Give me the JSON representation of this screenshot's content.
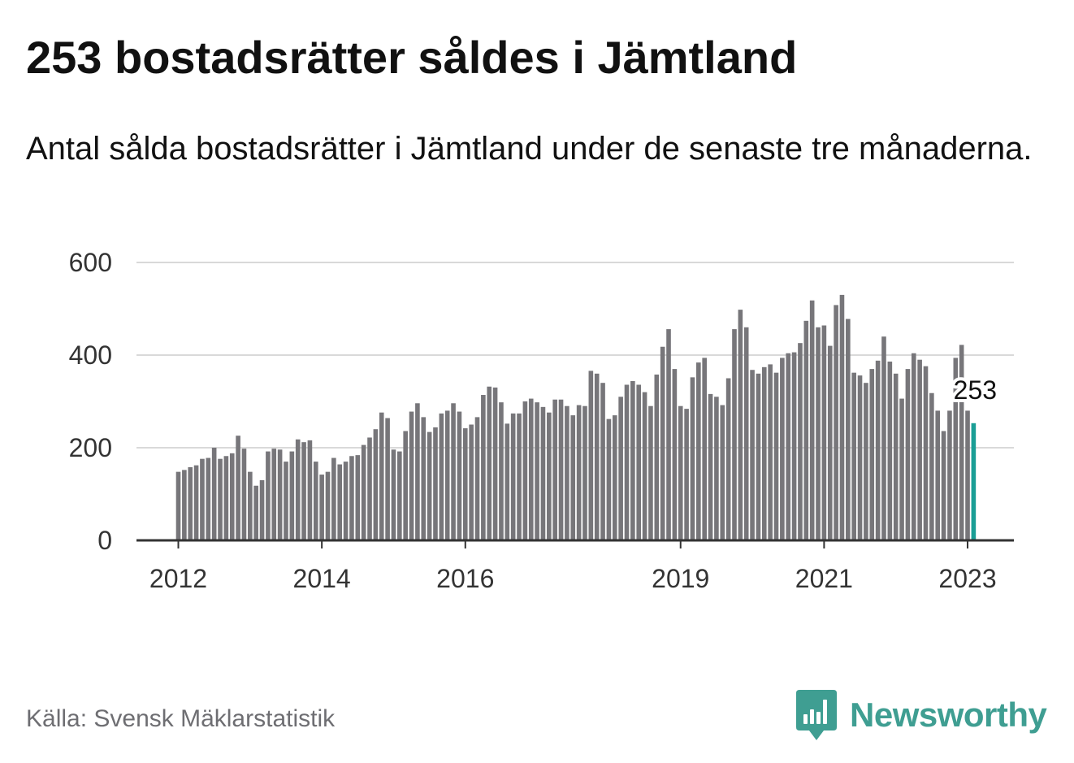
{
  "title": "253 bostadsrätter såldes i Jämtland",
  "subtitle": "Antal sålda bostadsrätter i Jämtland under de senaste tre månaderna.",
  "source": "Källa: Svensk Mäklarstatistik",
  "brand": {
    "name": "Newsworthy",
    "icon": "newsworthy-logo-icon",
    "color": "#3f9e92"
  },
  "colors": {
    "bar": "#77767a",
    "highlight": "#1a9e95",
    "grid": "#d9d9d9",
    "axis": "#333333"
  },
  "chart_data": {
    "type": "bar",
    "title": "253 bostadsrätter såldes i Jämtland",
    "subtitle": "Antal sålda bostadsrätter i Jämtland under de senaste tre månaderna.",
    "xlabel": "",
    "ylabel": "",
    "ylim": [
      0,
      600
    ],
    "yticks": [
      0,
      200,
      400,
      600
    ],
    "xticks": [
      "2012",
      "2014",
      "2016",
      "2019",
      "2021",
      "2023"
    ],
    "grid": true,
    "legend": "none",
    "x_start": "2012-01",
    "frequency": "monthly",
    "highlight_label": "253",
    "values": [
      148,
      152,
      158,
      162,
      176,
      178,
      200,
      176,
      182,
      188,
      226,
      198,
      148,
      118,
      130,
      192,
      198,
      196,
      170,
      192,
      218,
      212,
      216,
      170,
      142,
      148,
      178,
      164,
      170,
      182,
      184,
      206,
      222,
      240,
      276,
      264,
      196,
      192,
      236,
      278,
      296,
      266,
      234,
      244,
      274,
      280,
      296,
      278,
      242,
      250,
      266,
      314,
      332,
      330,
      298,
      252,
      274,
      274,
      300,
      306,
      298,
      288,
      276,
      304,
      304,
      290,
      270,
      292,
      290,
      366,
      360,
      340,
      262,
      270,
      310,
      336,
      344,
      336,
      320,
      290,
      358,
      418,
      456,
      370,
      290,
      284,
      352,
      384,
      394,
      316,
      310,
      292,
      350,
      456,
      498,
      460,
      368,
      360,
      374,
      380,
      362,
      394,
      404,
      406,
      426,
      474,
      518,
      460,
      464,
      420,
      508,
      530,
      478,
      362,
      356,
      340,
      370,
      388,
      440,
      386,
      360,
      306,
      370,
      404,
      390,
      376,
      318,
      280,
      236,
      280,
      394,
      422,
      280,
      253
    ],
    "highlight": [
      {
        "x": "2023-02",
        "value": 253
      }
    ]
  }
}
